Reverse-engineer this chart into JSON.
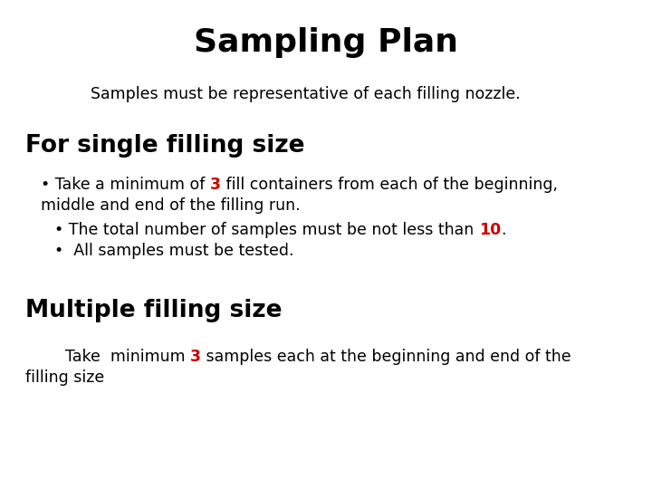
{
  "title": "Sampling Plan",
  "subtitle": "Samples must be representative of each filling nozzle.",
  "section1_heading": "For single filling size",
  "section2_heading": "Multiple filling size",
  "bg_color": "#ffffff",
  "text_color": "#000000",
  "red_color": "#cc0000",
  "title_fontsize": 26,
  "heading_fontsize": 19,
  "body_fontsize": 12.5,
  "subtitle_fontsize": 12.5
}
